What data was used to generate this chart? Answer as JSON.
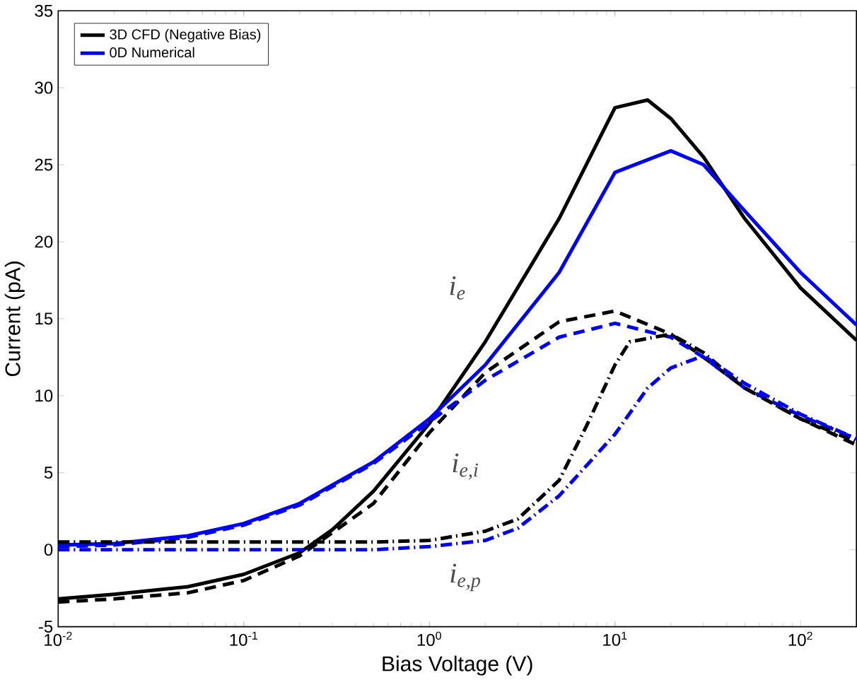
{
  "chart_data": {
    "type": "line",
    "xlabel": "Bias Voltage (V)",
    "ylabel": "Current (pA)",
    "log": "x",
    "xlim": [
      0.01,
      200
    ],
    "ylim": [
      -5,
      35
    ],
    "xticks": [
      {
        "value": 0.01,
        "label": "10$^{-2}$"
      },
      {
        "value": 0.1,
        "label": "10$^{-1}$"
      },
      {
        "value": 1,
        "label": "10$^{0}$"
      },
      {
        "value": 10,
        "label": "10$^{1}$"
      },
      {
        "value": 100,
        "label": "10$^{2}$"
      }
    ],
    "yticks": [
      -5,
      0,
      5,
      10,
      15,
      20,
      25,
      30,
      35
    ],
    "legend": "top left",
    "grid": false,
    "marker": "none",
    "series": [
      {
        "name": "3D CFD (Negative Bias)",
        "color": "#000000",
        "line_style": "solid",
        "x": [
          0.01,
          0.02,
          0.05,
          0.1,
          0.2,
          0.3,
          0.5,
          1,
          2,
          5,
          10,
          15,
          20,
          30,
          50,
          100,
          200
        ],
        "values": [
          -3.2,
          -2.9,
          -2.4,
          -1.6,
          -0.2,
          1.3,
          3.8,
          8.2,
          13.5,
          21.5,
          28.7,
          29.2,
          28,
          25.5,
          21.5,
          17,
          13.6
        ]
      },
      {
        "name": "0D Numerical",
        "color": "#0000ff",
        "line_style": "solid",
        "x": [
          0.01,
          0.02,
          0.05,
          0.1,
          0.2,
          0.5,
          1,
          2,
          5,
          10,
          20,
          30,
          50,
          100,
          200
        ],
        "values": [
          0.3,
          0.4,
          0.9,
          1.7,
          3,
          5.7,
          8.5,
          12,
          18,
          24.5,
          25.9,
          25,
          22,
          18,
          14.6
        ]
      },
      {
        "color": "#000000",
        "line_style": "dashed",
        "x": [
          0.01,
          0.02,
          0.05,
          0.1,
          0.2,
          0.5,
          1,
          2,
          5,
          10,
          20,
          30,
          50,
          100,
          200
        ],
        "values": [
          -3.4,
          -3.2,
          -2.8,
          -2,
          -0.4,
          3,
          7.6,
          11.5,
          14.8,
          15.5,
          14,
          12.5,
          10.5,
          8.5,
          6.8
        ]
      },
      {
        "color": "#0000ff",
        "line_style": "dashed",
        "x": [
          0.01,
          0.02,
          0.05,
          0.1,
          0.2,
          0.5,
          1,
          2,
          5,
          10,
          20,
          30,
          50,
          100,
          200
        ],
        "values": [
          0.2,
          0.3,
          0.8,
          1.6,
          2.9,
          5.6,
          8.3,
          11,
          13.8,
          14.7,
          13.8,
          12.5,
          10.5,
          8.7,
          7.2
        ]
      },
      {
        "color": "#000000",
        "line_style": "dashdot",
        "x": [
          0.01,
          0.1,
          0.5,
          1,
          2,
          3,
          5,
          7,
          10,
          12,
          20,
          30,
          50,
          100,
          200
        ],
        "values": [
          0.5,
          0.5,
          0.5,
          0.6,
          1.2,
          2,
          4.5,
          8,
          12,
          13.5,
          14,
          12.8,
          10.5,
          8.5,
          7
        ]
      },
      {
        "color": "#0000ff",
        "line_style": "dashdot",
        "x": [
          0.01,
          0.1,
          0.5,
          1,
          2,
          3,
          5,
          10,
          15,
          20,
          30,
          50,
          100,
          200
        ],
        "values": [
          0,
          0,
          0,
          0.2,
          0.6,
          1.4,
          3.5,
          7.5,
          10.5,
          11.8,
          12.6,
          10.8,
          8.8,
          7.2
        ]
      }
    ],
    "annotations": [
      "i$_{e}$",
      "i$_{e,i}$",
      "i$_{e,p}$"
    ]
  }
}
